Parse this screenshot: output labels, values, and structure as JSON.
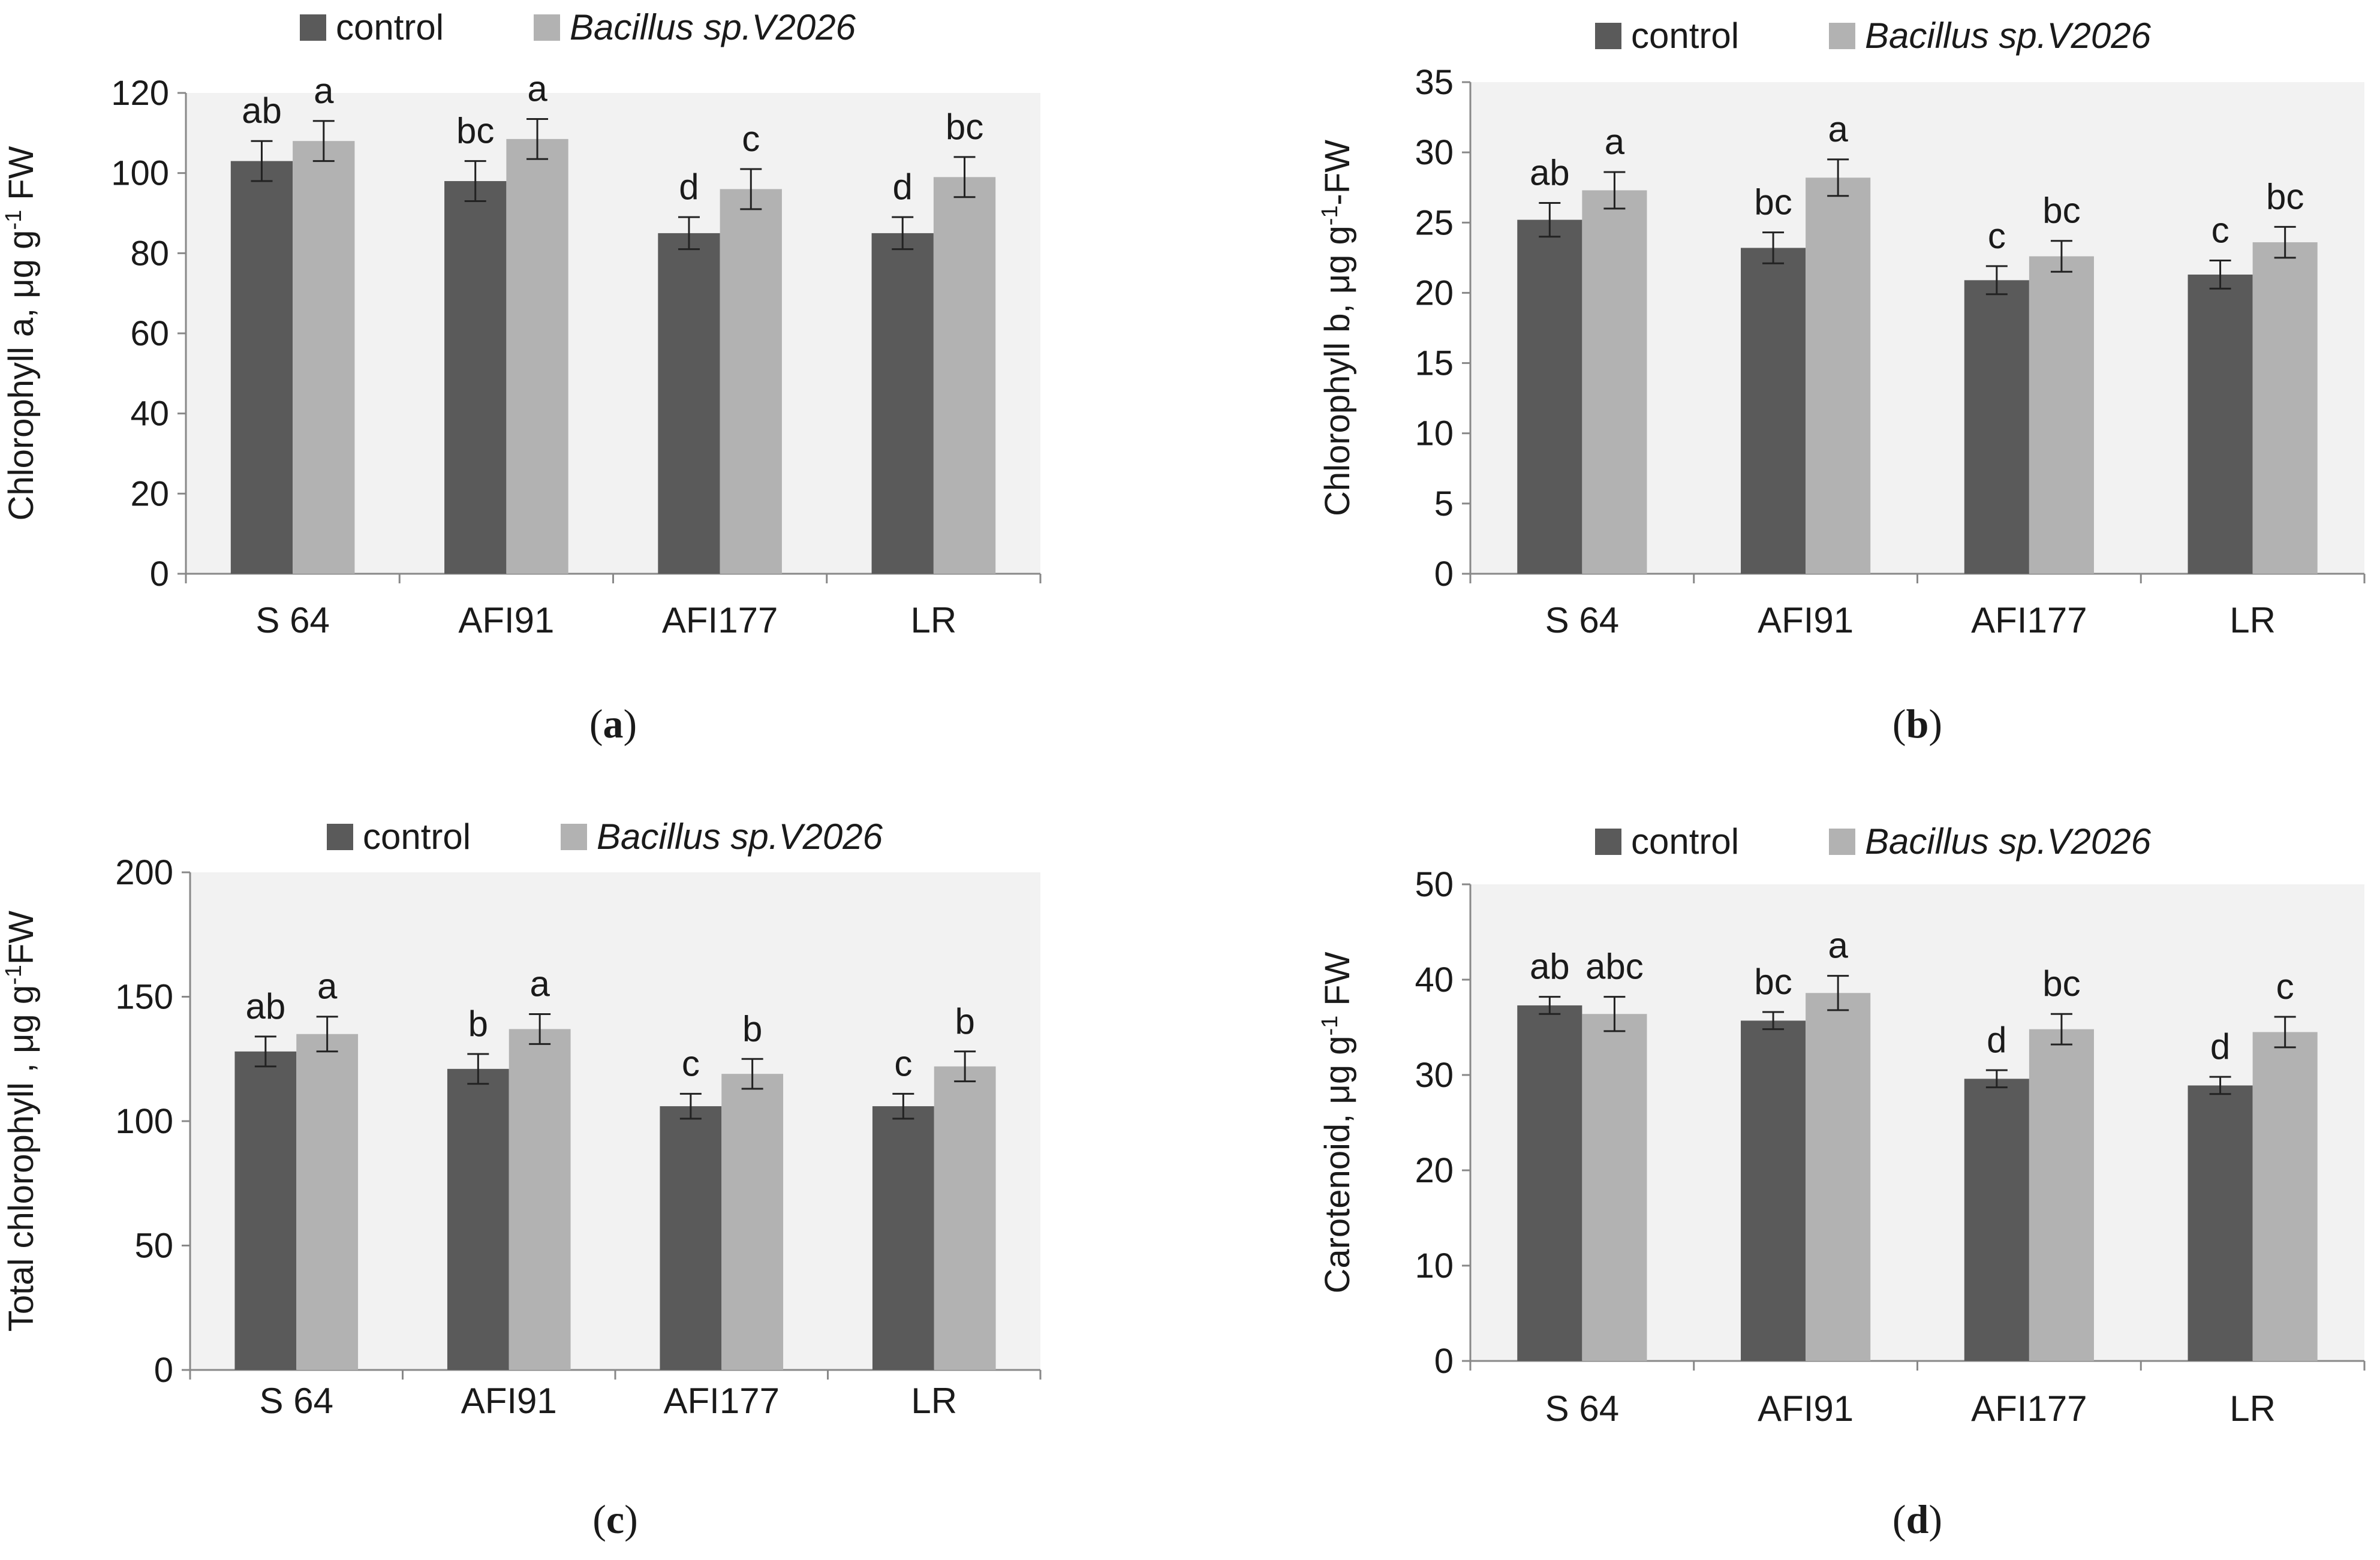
{
  "colors": {
    "control": "#5a5a5a",
    "treatment": "#b2b2b2",
    "plot_bg": "#f2f2f2",
    "axis": "#888888",
    "text": "#1a1a1a"
  },
  "chart_data": [
    {
      "type": "bar",
      "panel_label": "a",
      "ylabel_main": "Chlorophyll a, μg g",
      "ylabel_sup": "-1",
      "ylabel_tail": " FW",
      "ylim": [
        0,
        120
      ],
      "yticks": [
        0,
        20,
        40,
        60,
        80,
        100,
        120
      ],
      "categories": [
        "S 64",
        "AFI91",
        "AFI177",
        "LR"
      ],
      "legend_position": "top",
      "grid": false,
      "series": [
        {
          "name": "control",
          "italic": false,
          "values": [
            103,
            98,
            85,
            85
          ],
          "errors": [
            5,
            5,
            4,
            4
          ],
          "letters": [
            "ab",
            "bc",
            "d",
            "d"
          ]
        },
        {
          "name": "Bacillus sp.V2026",
          "italic": true,
          "values": [
            108,
            108.5,
            96,
            99
          ],
          "errors": [
            5,
            5,
            5,
            5
          ],
          "letters": [
            "a",
            "a",
            "c",
            "bc"
          ]
        }
      ]
    },
    {
      "type": "bar",
      "panel_label": "b",
      "ylabel_main": "Chlorophyll b, μg g",
      "ylabel_sup": "-1",
      "ylabel_tail": "-FW",
      "ylim": [
        0,
        35
      ],
      "yticks": [
        0,
        5,
        10,
        15,
        20,
        25,
        30,
        35
      ],
      "categories": [
        "S 64",
        "AFI91",
        "AFI177",
        "LR"
      ],
      "legend_position": "top",
      "grid": false,
      "series": [
        {
          "name": "control",
          "italic": false,
          "values": [
            25.2,
            23.2,
            20.9,
            21.3
          ],
          "errors": [
            1.2,
            1.1,
            1.0,
            1.0
          ],
          "letters": [
            "ab",
            "bc",
            "c",
            "c"
          ]
        },
        {
          "name": "Bacillus sp.V2026",
          "italic": true,
          "values": [
            27.3,
            28.2,
            22.6,
            23.6
          ],
          "errors": [
            1.3,
            1.3,
            1.1,
            1.1
          ],
          "letters": [
            "a",
            "a",
            "bc",
            "bc"
          ]
        }
      ]
    },
    {
      "type": "bar",
      "panel_label": "c",
      "ylabel_main": "Total chlorophyll , μg g",
      "ylabel_sup": "-1",
      "ylabel_tail": "FW",
      "ylim": [
        0,
        200
      ],
      "yticks": [
        0,
        50,
        100,
        150,
        200
      ],
      "categories": [
        "S 64",
        "AFI91",
        "AFI177",
        "LR"
      ],
      "legend_position": "top",
      "grid": false,
      "series": [
        {
          "name": "control",
          "italic": false,
          "values": [
            128,
            121,
            106,
            106
          ],
          "errors": [
            6,
            6,
            5,
            5
          ],
          "letters": [
            "ab",
            "b",
            "c",
            "c"
          ]
        },
        {
          "name": "Bacillus sp.V2026",
          "italic": true,
          "values": [
            135,
            137,
            119,
            122
          ],
          "errors": [
            7,
            6,
            6,
            6
          ],
          "letters": [
            "a",
            "a",
            "b",
            "b"
          ]
        }
      ]
    },
    {
      "type": "bar",
      "panel_label": "d",
      "ylabel_main": "Carotenoid, μg g",
      "ylabel_sup": "-1",
      "ylabel_tail": " FW",
      "ylim": [
        0,
        50
      ],
      "yticks": [
        0,
        10,
        20,
        30,
        40,
        50
      ],
      "categories": [
        "S 64",
        "AFI91",
        "AFI177",
        "LR"
      ],
      "legend_position": "top",
      "grid": false,
      "series": [
        {
          "name": "control",
          "italic": false,
          "values": [
            37.3,
            35.7,
            29.6,
            28.9
          ],
          "errors": [
            0.9,
            0.9,
            0.9,
            0.9
          ],
          "letters": [
            "ab",
            "bc",
            "d",
            "d"
          ]
        },
        {
          "name": "Bacillus sp.V2026",
          "italic": true,
          "values": [
            36.4,
            38.6,
            34.8,
            34.5
          ],
          "errors": [
            1.8,
            1.8,
            1.6,
            1.6
          ],
          "letters": [
            "abc",
            "a",
            "bc",
            "c"
          ]
        }
      ]
    }
  ]
}
